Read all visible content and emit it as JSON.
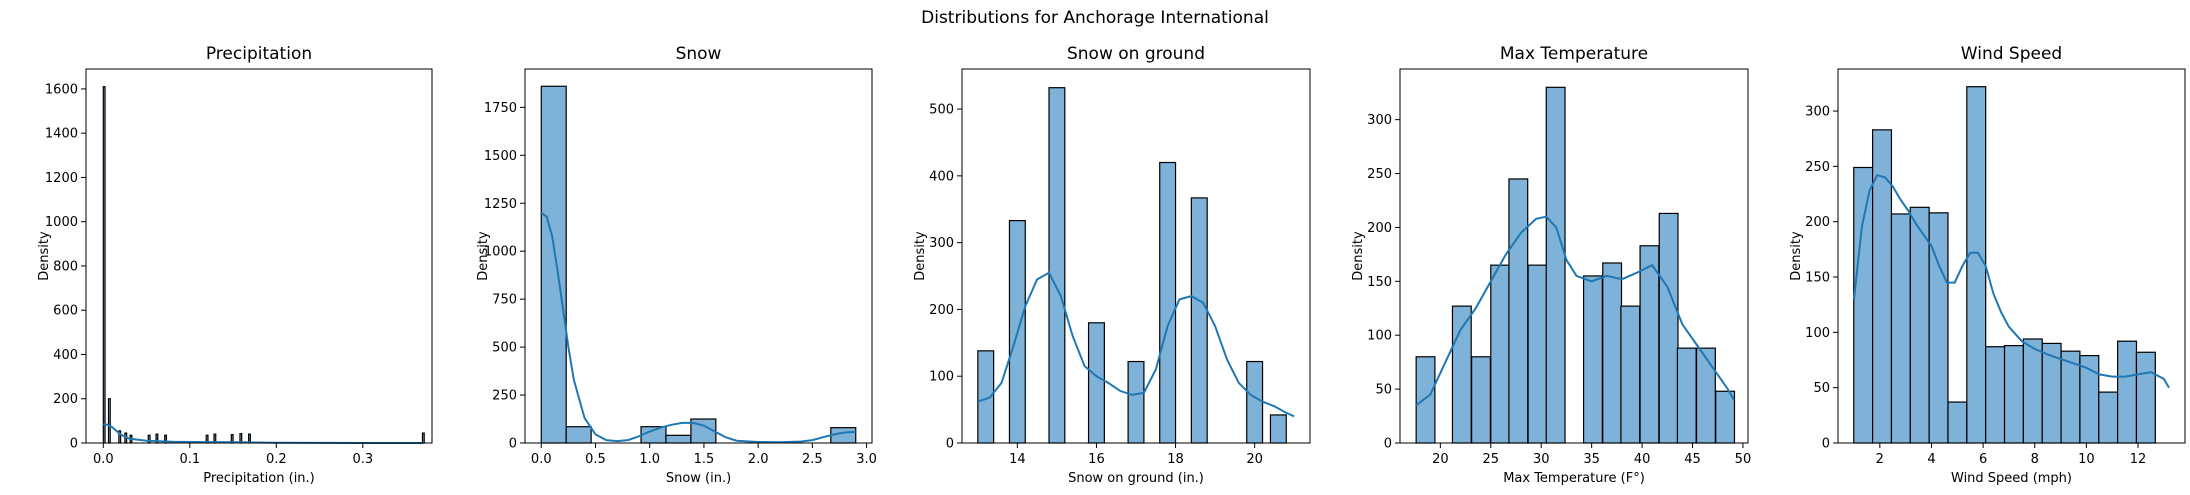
{
  "suptitle": "Distributions for Anchorage International",
  "colors": {
    "bar_fill": "#7fb2d8",
    "bar_edge": "#000000",
    "kde": "#1f77b4"
  },
  "chart_data": [
    {
      "type": "bar",
      "title": "Precipitation",
      "xlabel": "Precipitation (in.)",
      "ylabel": "Density",
      "xlim": [
        -0.02,
        0.38
      ],
      "ylim": [
        0,
        1690
      ],
      "xticks": [
        0.0,
        0.1,
        0.2,
        0.3
      ],
      "xtick_labels": [
        "0.0",
        "0.1",
        "0.2",
        "0.3"
      ],
      "yticks": [
        0,
        200,
        400,
        600,
        800,
        1000,
        1200,
        1400,
        1600
      ],
      "ytick_labels": [
        "0",
        "200",
        "400",
        "600",
        "800",
        "1000",
        "1200",
        "1400",
        "1600"
      ],
      "bin_width": 0.002,
      "bins": [
        [
          0.0,
          1610
        ],
        [
          0.006,
          200
        ],
        [
          0.018,
          55
        ],
        [
          0.025,
          45
        ],
        [
          0.031,
          35
        ],
        [
          0.052,
          35
        ],
        [
          0.061,
          40
        ],
        [
          0.071,
          35
        ],
        [
          0.119,
          35
        ],
        [
          0.128,
          40
        ],
        [
          0.148,
          38
        ],
        [
          0.158,
          42
        ],
        [
          0.168,
          40
        ],
        [
          0.369,
          45
        ]
      ],
      "kde": {
        "x": [
          0.0,
          0.005,
          0.01,
          0.015,
          0.02,
          0.03,
          0.05,
          0.08,
          0.12,
          0.16,
          0.2,
          0.25,
          0.3,
          0.37
        ],
        "y": [
          85,
          82,
          72,
          55,
          38,
          20,
          10,
          6,
          4,
          3,
          1,
          0.5,
          0.2,
          0
        ]
      }
    },
    {
      "type": "bar",
      "title": "Snow",
      "xlabel": "Snow (in.)",
      "ylabel": "Density",
      "xlim": [
        -0.15,
        3.05
      ],
      "ylim": [
        0,
        1950
      ],
      "xticks": [
        0.0,
        0.5,
        1.0,
        1.5,
        2.0,
        2.5,
        3.0
      ],
      "xtick_labels": [
        "0.0",
        "0.5",
        "1.0",
        "1.5",
        "2.0",
        "2.5",
        "3.0"
      ],
      "yticks": [
        0,
        250,
        500,
        750,
        1000,
        1250,
        1500,
        1750
      ],
      "ytick_labels": [
        "0",
        "250",
        "500",
        "750",
        "1000",
        "1250",
        "1500",
        "1750"
      ],
      "bin_width": 0.23,
      "bins": [
        [
          0.0,
          1860
        ],
        [
          0.23,
          85
        ],
        [
          0.92,
          85
        ],
        [
          1.15,
          40
        ],
        [
          1.38,
          125
        ],
        [
          2.67,
          80
        ]
      ],
      "kde": {
        "x": [
          0.0,
          0.05,
          0.1,
          0.15,
          0.2,
          0.25,
          0.3,
          0.4,
          0.5,
          0.6,
          0.7,
          0.8,
          0.9,
          1.0,
          1.1,
          1.2,
          1.3,
          1.4,
          1.5,
          1.6,
          1.7,
          1.8,
          2.0,
          2.2,
          2.4,
          2.5,
          2.6,
          2.7,
          2.8,
          2.9
        ],
        "y": [
          1200,
          1180,
          1080,
          900,
          700,
          500,
          330,
          130,
          45,
          15,
          10,
          15,
          35,
          60,
          80,
          95,
          105,
          105,
          90,
          60,
          30,
          12,
          5,
          4,
          8,
          15,
          30,
          45,
          55,
          58
        ]
      }
    },
    {
      "type": "bar",
      "title": "Snow on ground",
      "xlabel": "Snow on ground (in.)",
      "ylabel": "Density",
      "xlim": [
        12.6,
        21.4
      ],
      "ylim": [
        0,
        560
      ],
      "xticks": [
        14,
        16,
        18,
        20
      ],
      "xtick_labels": [
        "14",
        "16",
        "18",
        "20"
      ],
      "yticks": [
        0,
        100,
        200,
        300,
        400,
        500
      ],
      "ytick_labels": [
        "0",
        "100",
        "200",
        "300",
        "400",
        "500"
      ],
      "bin_width": 0.4,
      "bins": [
        [
          13.0,
          138
        ],
        [
          13.8,
          333
        ],
        [
          14.8,
          532
        ],
        [
          15.8,
          180
        ],
        [
          16.8,
          122
        ],
        [
          17.6,
          420
        ],
        [
          18.4,
          367
        ],
        [
          19.8,
          122
        ],
        [
          20.4,
          42
        ]
      ],
      "kde": {
        "x": [
          13.0,
          13.3,
          13.6,
          13.9,
          14.2,
          14.5,
          14.8,
          15.1,
          15.4,
          15.7,
          16.0,
          16.3,
          16.6,
          16.9,
          17.2,
          17.5,
          17.8,
          18.1,
          18.4,
          18.7,
          19.0,
          19.3,
          19.6,
          19.9,
          20.2,
          20.5,
          20.8,
          21.0
        ],
        "y": [
          62,
          68,
          90,
          145,
          205,
          245,
          255,
          220,
          160,
          115,
          100,
          90,
          78,
          72,
          75,
          110,
          175,
          215,
          220,
          210,
          175,
          125,
          90,
          72,
          62,
          55,
          45,
          40
        ]
      }
    },
    {
      "type": "bar",
      "title": "Max Temperature",
      "xlabel": "Max Temperature (F°)",
      "ylabel": "Density",
      "xlim": [
        16.0,
        50.5
      ],
      "ylim": [
        0,
        347
      ],
      "xticks": [
        20,
        25,
        30,
        35,
        40,
        45,
        50
      ],
      "xtick_labels": [
        "20",
        "25",
        "30",
        "35",
        "40",
        "45",
        "50"
      ],
      "yticks": [
        0,
        50,
        100,
        150,
        200,
        250,
        300
      ],
      "ytick_labels": [
        "0",
        "50",
        "100",
        "150",
        "200",
        "250",
        "300"
      ],
      "bin_width": 1.86,
      "bins": [
        [
          17.6,
          80
        ],
        [
          21.2,
          127
        ],
        [
          23.1,
          80
        ],
        [
          25.0,
          165
        ],
        [
          26.8,
          245
        ],
        [
          28.7,
          165
        ],
        [
          30.5,
          330
        ],
        [
          34.2,
          155
        ],
        [
          36.1,
          167
        ],
        [
          37.9,
          127
        ],
        [
          39.8,
          183
        ],
        [
          41.7,
          213
        ],
        [
          43.5,
          88
        ],
        [
          45.4,
          88
        ],
        [
          47.3,
          48
        ]
      ],
      "kde": {
        "x": [
          17.6,
          19,
          20.5,
          22,
          23.5,
          25,
          26.5,
          28,
          29.5,
          30.5,
          31.5,
          32.5,
          33.5,
          35,
          36.5,
          38,
          39.5,
          41,
          42.5,
          44,
          45.5,
          47,
          48.5,
          49.1
        ],
        "y": [
          35,
          45,
          75,
          105,
          125,
          150,
          175,
          195,
          208,
          210,
          200,
          170,
          155,
          150,
          155,
          152,
          158,
          165,
          145,
          110,
          90,
          70,
          50,
          40
        ]
      }
    },
    {
      "type": "bar",
      "title": "Wind Speed",
      "xlabel": "Wind Speed (mph)",
      "ylabel": "Density",
      "xlim": [
        0.38,
        13.82
      ],
      "ylim": [
        0,
        338
      ],
      "xticks": [
        2,
        4,
        6,
        8,
        10,
        12
      ],
      "xtick_labels": [
        "2",
        "4",
        "6",
        "8",
        "10",
        "12"
      ],
      "yticks": [
        0,
        50,
        100,
        150,
        200,
        250,
        300
      ],
      "ytick_labels": [
        "0",
        "50",
        "100",
        "150",
        "200",
        "250",
        "300"
      ],
      "bin_width": 0.73,
      "bins": [
        [
          0.99,
          249
        ],
        [
          1.72,
          283
        ],
        [
          2.45,
          207
        ],
        [
          3.18,
          213
        ],
        [
          3.91,
          208
        ],
        [
          4.64,
          37
        ],
        [
          5.37,
          322
        ],
        [
          6.1,
          87
        ],
        [
          6.83,
          88
        ],
        [
          7.56,
          94
        ],
        [
          8.29,
          90
        ],
        [
          9.02,
          83
        ],
        [
          9.75,
          79
        ],
        [
          10.48,
          46
        ],
        [
          11.21,
          92
        ],
        [
          11.94,
          82
        ]
      ],
      "kde": {
        "x": [
          1.0,
          1.3,
          1.6,
          1.9,
          2.2,
          2.5,
          2.8,
          3.1,
          3.4,
          3.7,
          4.0,
          4.3,
          4.6,
          4.9,
          5.2,
          5.5,
          5.8,
          6.1,
          6.4,
          6.7,
          7.0,
          7.5,
          8.0,
          8.5,
          9.0,
          9.5,
          10.0,
          10.5,
          11.0,
          11.5,
          12.0,
          12.5,
          13.0,
          13.2
        ],
        "y": [
          130,
          195,
          228,
          242,
          240,
          232,
          220,
          210,
          198,
          188,
          178,
          160,
          145,
          145,
          160,
          172,
          172,
          160,
          135,
          118,
          105,
          92,
          85,
          80,
          76,
          72,
          68,
          62,
          60,
          60,
          62,
          64,
          58,
          50
        ]
      }
    }
  ]
}
